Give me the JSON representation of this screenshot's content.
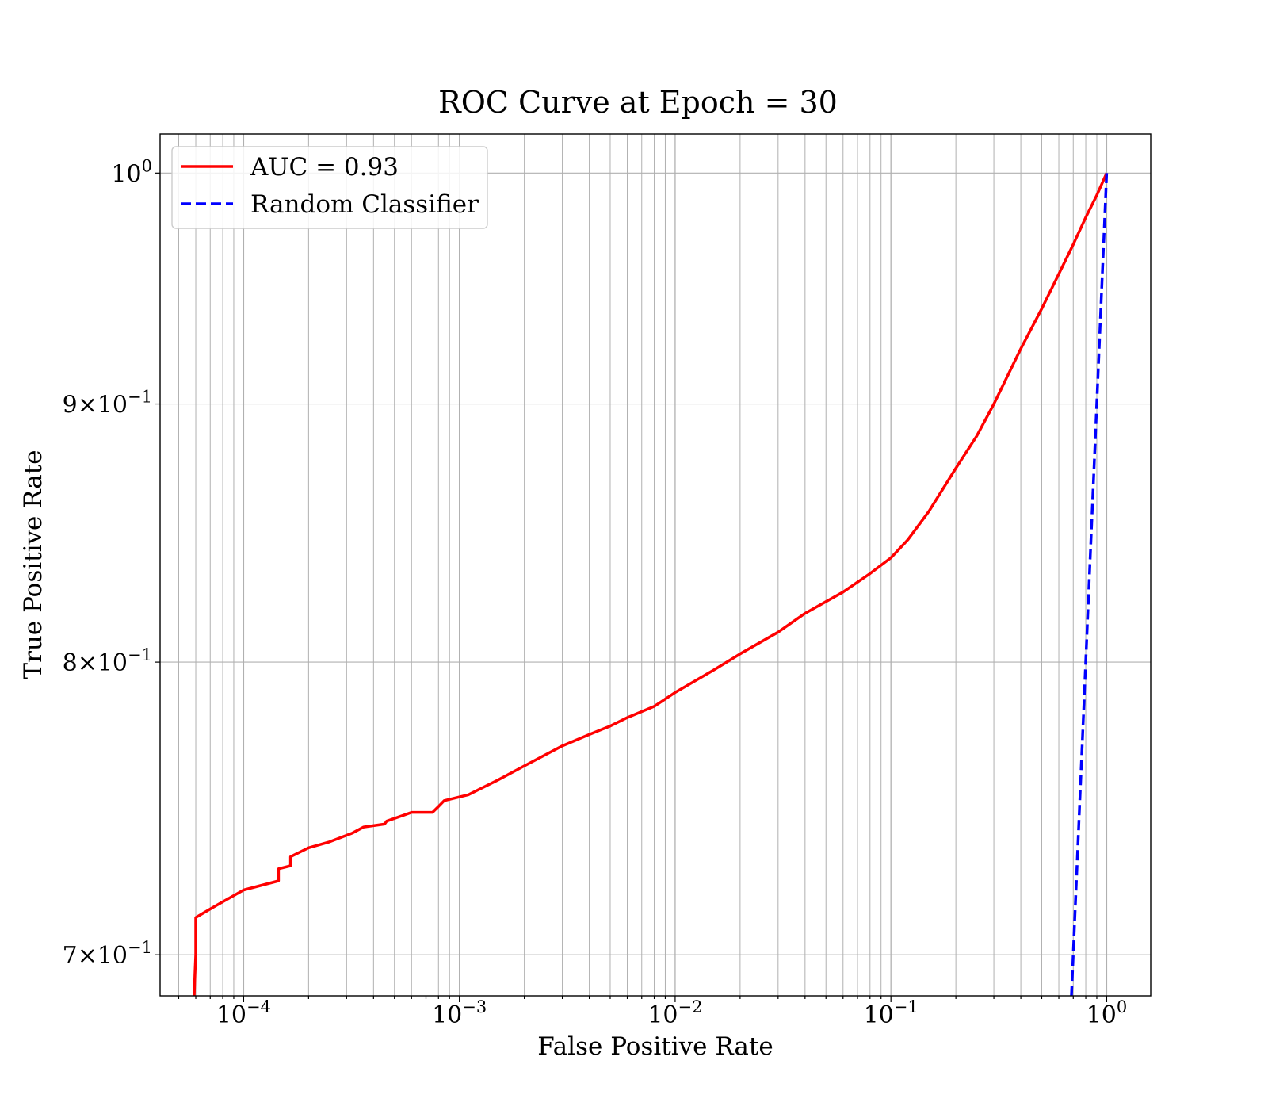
{
  "chart_data": {
    "type": "line",
    "title": "ROC Curve at Epoch = 30",
    "xlabel": "False Positive Rate",
    "ylabel": "True Positive Rate",
    "xscale": "log",
    "yscale": "log",
    "xlim": [
      4.1e-05,
      1.6
    ],
    "ylim": [
      0.687,
      1.018
    ],
    "grid": true,
    "grid_minor": true,
    "legend_position": "upper left",
    "x_ticks": [
      {
        "value": 0.0001,
        "base": "10",
        "exp": "−4"
      },
      {
        "value": 0.001,
        "base": "10",
        "exp": "−3"
      },
      {
        "value": 0.01,
        "base": "10",
        "exp": "−2"
      },
      {
        "value": 0.1,
        "base": "10",
        "exp": "−1"
      },
      {
        "value": 1,
        "base": "10",
        "exp": "0"
      }
    ],
    "y_ticks": [
      {
        "value": 1,
        "prefix": "",
        "base": "10",
        "exp": "0"
      },
      {
        "value": 0.9,
        "prefix": "9×",
        "base": "10",
        "exp": "−1"
      },
      {
        "value": 0.8,
        "prefix": "8×",
        "base": "10",
        "exp": "−1"
      },
      {
        "value": 0.7,
        "prefix": "7×",
        "base": "10",
        "exp": "−1"
      }
    ],
    "series": [
      {
        "name": "AUC = 0.93",
        "color": "#ff0000",
        "style": "solid",
        "x": [
          5.9e-05,
          5.95e-05,
          6e-05,
          6e-05,
          6e-05,
          7.5e-05,
          0.0001,
          0.000145,
          0.000145,
          0.000165,
          0.000165,
          0.0002,
          0.00025,
          0.00032,
          0.00036,
          0.00045,
          0.00046,
          0.00055,
          0.0006,
          0.00075,
          0.0008,
          0.00085,
          0.0011,
          0.0015,
          0.002,
          0.003,
          0.004,
          0.005,
          0.006,
          0.008,
          0.01,
          0.015,
          0.02,
          0.03,
          0.04,
          0.06,
          0.08,
          0.1,
          0.12,
          0.15,
          0.2,
          0.25,
          0.3,
          0.4,
          0.5,
          0.6,
          0.7,
          0.8,
          0.9,
          1.0
        ],
        "y": [
          0.687,
          0.694,
          0.7,
          0.707,
          0.712,
          0.716,
          0.721,
          0.724,
          0.728,
          0.729,
          0.732,
          0.735,
          0.737,
          0.74,
          0.742,
          0.743,
          0.744,
          0.746,
          0.747,
          0.747,
          0.749,
          0.751,
          0.753,
          0.758,
          0.763,
          0.77,
          0.774,
          0.777,
          0.78,
          0.784,
          0.789,
          0.797,
          0.803,
          0.811,
          0.818,
          0.826,
          0.833,
          0.839,
          0.846,
          0.857,
          0.874,
          0.887,
          0.9,
          0.923,
          0.94,
          0.955,
          0.968,
          0.98,
          0.99,
          1.0
        ]
      },
      {
        "name": "Random Classifier",
        "color": "#0000ff",
        "style": "dashed",
        "x": [
          0.687,
          1.0
        ],
        "y": [
          0.687,
          1.0
        ]
      }
    ]
  }
}
